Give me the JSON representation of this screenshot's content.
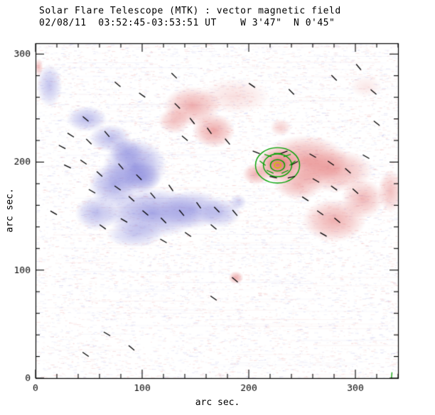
{
  "chart_data": {
    "type": "heatmap",
    "title": "Solar Flare Telescope (MTK) : vector magnetic field",
    "subtitle": "02/08/11  03:52:45-03:53:51 UT    W 3'47\"  N 0'45\"",
    "xlabel": "arc sec.",
    "ylabel": "arc sec.",
    "xlim": [
      0,
      340
    ],
    "ylim": [
      0,
      310
    ],
    "xticks": [
      0,
      100,
      200,
      300
    ],
    "yticks": [
      0,
      100,
      200,
      300
    ],
    "minor_tick_step": 20,
    "grid": false,
    "legend": "none",
    "colors": {
      "positive_polarity": "#e06060",
      "negative_polarity": "#7878d8",
      "contour": "#00a000",
      "contour_core": "#c8c800",
      "vector": "#000000",
      "frame": "#000000",
      "background": "#ffffff"
    },
    "negative_blobs": [
      [
        48,
        240,
        19,
        12,
        0.5
      ],
      [
        70,
        222,
        20,
        13,
        0.5
      ],
      [
        93,
        196,
        30,
        26,
        0.7
      ],
      [
        100,
        186,
        18,
        14,
        0.5
      ],
      [
        85,
        210,
        16,
        12,
        0.45
      ],
      [
        73,
        179,
        23,
        20,
        0.6
      ],
      [
        110,
        153,
        47,
        23,
        0.65
      ],
      [
        147,
        156,
        30,
        18,
        0.55
      ],
      [
        173,
        153,
        20,
        14,
        0.45
      ],
      [
        57,
        153,
        20,
        16,
        0.5
      ],
      [
        93,
        133,
        27,
        12,
        0.4
      ],
      [
        13,
        271,
        12,
        20,
        0.45
      ],
      [
        190,
        163,
        8,
        7,
        0.35
      ]
    ],
    "positive_blobs": [
      [
        147,
        252,
        27,
        18,
        0.5
      ],
      [
        167,
        229,
        20,
        16,
        0.55
      ],
      [
        130,
        238,
        15,
        12,
        0.4
      ],
      [
        187,
        261,
        33,
        16,
        0.2
      ],
      [
        253,
        202,
        40,
        23,
        0.55
      ],
      [
        280,
        192,
        37,
        20,
        0.5
      ],
      [
        227,
        198,
        20,
        16,
        0.65
      ],
      [
        227,
        198,
        10,
        8,
        0.5
      ],
      [
        207,
        189,
        13,
        10,
        0.5
      ],
      [
        247,
        179,
        23,
        14,
        0.45
      ],
      [
        280,
        146,
        30,
        20,
        0.5
      ],
      [
        307,
        166,
        20,
        18,
        0.45
      ],
      [
        333,
        173,
        12,
        20,
        0.4
      ],
      [
        188,
        93,
        7,
        6,
        0.5
      ],
      [
        3,
        288,
        4,
        8,
        0.4
      ],
      [
        230,
        232,
        10,
        8,
        0.3
      ],
      [
        310,
        270,
        15,
        10,
        0.15
      ]
    ],
    "contours": {
      "x": 227,
      "y": 197,
      "radii_x": [
        6.7,
        13.3,
        20.7
      ],
      "radii_y": [
        5.3,
        10.5,
        16.4
      ],
      "core_rx": 3,
      "core_ry": 2.5
    },
    "vector_length": 7,
    "field_vectors": [
      [
        47,
        240,
        -40
      ],
      [
        33,
        225,
        -32
      ],
      [
        25,
        214,
        -28
      ],
      [
        50,
        219,
        -45
      ],
      [
        67,
        226,
        -50
      ],
      [
        45,
        200,
        -35
      ],
      [
        30,
        196,
        -25
      ],
      [
        60,
        189,
        -42
      ],
      [
        80,
        196,
        -50
      ],
      [
        97,
        186,
        -45
      ],
      [
        77,
        176,
        -35
      ],
      [
        53,
        173,
        -30
      ],
      [
        90,
        166,
        -42
      ],
      [
        110,
        169,
        -50
      ],
      [
        127,
        176,
        -55
      ],
      [
        103,
        153,
        -40
      ],
      [
        120,
        146,
        -45
      ],
      [
        83,
        146,
        -30
      ],
      [
        63,
        140,
        -35
      ],
      [
        137,
        153,
        -50
      ],
      [
        153,
        160,
        -55
      ],
      [
        170,
        156,
        -45
      ],
      [
        187,
        153,
        -50
      ],
      [
        167,
        140,
        -40
      ],
      [
        143,
        133,
        -35
      ],
      [
        120,
        127,
        -30
      ],
      [
        133,
        252,
        -45
      ],
      [
        147,
        238,
        -52
      ],
      [
        163,
        229,
        -55
      ],
      [
        180,
        219,
        -50
      ],
      [
        140,
        222,
        -40
      ],
      [
        207,
        209,
        -20
      ],
      [
        233,
        209,
        20
      ],
      [
        243,
        199,
        28
      ],
      [
        260,
        206,
        -30
      ],
      [
        277,
        199,
        -35
      ],
      [
        293,
        192,
        -42
      ],
      [
        263,
        183,
        -30
      ],
      [
        280,
        176,
        -36
      ],
      [
        300,
        173,
        -42
      ],
      [
        267,
        153,
        -35
      ],
      [
        283,
        146,
        -40
      ],
      [
        270,
        133,
        -30
      ],
      [
        280,
        278,
        -45
      ],
      [
        303,
        288,
        -50
      ],
      [
        317,
        265,
        -40
      ],
      [
        203,
        271,
        -35
      ],
      [
        240,
        265,
        -45
      ],
      [
        187,
        91,
        -40
      ],
      [
        167,
        74,
        -35
      ],
      [
        67,
        41,
        -30
      ],
      [
        90,
        28,
        -40
      ],
      [
        47,
        22,
        -35
      ],
      [
        17,
        153,
        -30
      ],
      [
        240,
        186,
        12
      ],
      [
        223,
        186,
        -12
      ],
      [
        77,
        272,
        -40
      ],
      [
        130,
        280,
        -45
      ],
      [
        100,
        262,
        -35
      ],
      [
        320,
        236,
        -38
      ],
      [
        310,
        205,
        -30
      ],
      [
        253,
        166,
        -33
      ]
    ],
    "green_vectors": [
      [
        218,
        206,
        -18
      ],
      [
        227,
        208,
        0
      ],
      [
        236,
        206,
        18
      ],
      [
        213,
        199,
        -38
      ],
      [
        241,
        199,
        38
      ],
      [
        220,
        191,
        -25
      ],
      [
        234,
        191,
        25
      ],
      [
        334,
        2,
        85
      ]
    ],
    "noise": {
      "seed": 20110802,
      "count": 9000,
      "streaks": 120
    }
  }
}
